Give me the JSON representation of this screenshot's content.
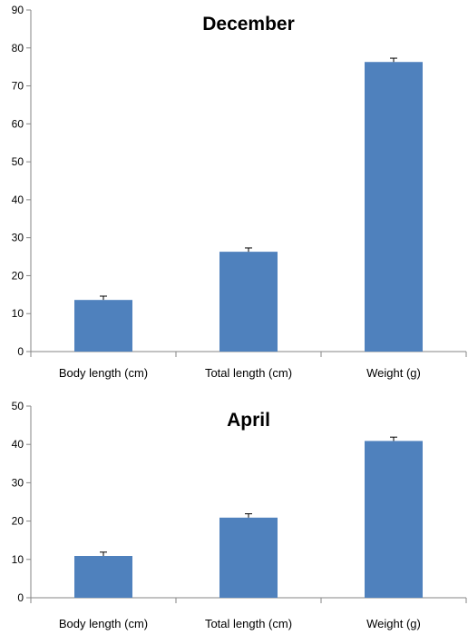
{
  "chart_data": [
    {
      "type": "bar",
      "title": "December",
      "categories": [
        "Body length (cm)",
        "Total length (cm)",
        "Weight (g)"
      ],
      "values": [
        13.6,
        26.3,
        76.3
      ],
      "errors": [
        1.0,
        1.0,
        1.0
      ],
      "ylim": [
        0,
        90
      ],
      "yticks": [
        0,
        10,
        20,
        30,
        40,
        50,
        60,
        70,
        80,
        90
      ],
      "ytick_labels": [
        "0",
        "10",
        "20",
        "30",
        "40",
        "50",
        "60",
        "70",
        "80",
        "90"
      ],
      "bar_color": "#4f81bd",
      "grid": false,
      "legend": "none"
    },
    {
      "type": "bar",
      "title": "April",
      "categories": [
        "Body length (cm)",
        "Total length (cm)",
        "Weight (g)"
      ],
      "values": [
        10.9,
        20.9,
        40.9
      ],
      "errors": [
        1.0,
        1.0,
        1.0
      ],
      "ylim": [
        0,
        50
      ],
      "yticks": [
        0,
        10,
        20,
        30,
        40,
        50
      ],
      "ytick_labels": [
        "0",
        "10",
        "20",
        "30",
        "40",
        "50"
      ],
      "bar_color": "#4f81bd",
      "grid": false,
      "legend": "none"
    }
  ]
}
